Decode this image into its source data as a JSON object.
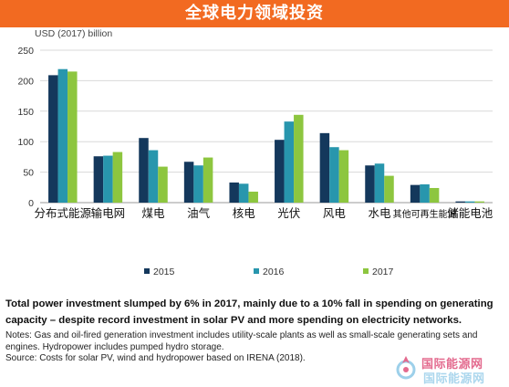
{
  "header": {
    "title": "全球电力领域投资"
  },
  "chart_data": {
    "type": "bar",
    "unit_label": "USD (2017) billion",
    "categories": [
      "分布式能源",
      "输电网",
      "煤电",
      "油气",
      "核电",
      "光伏",
      "风电",
      "水电",
      "其他可再生能源",
      "储能电池"
    ],
    "series": [
      {
        "name": "2015",
        "color": "#14385c",
        "values": [
          209,
          76,
          106,
          67,
          33,
          103,
          114,
          61,
          29,
          2
        ]
      },
      {
        "name": "2016",
        "color": "#2896ad",
        "values": [
          219,
          77,
          86,
          61,
          31,
          133,
          91,
          64,
          30,
          2
        ]
      },
      {
        "name": "2017",
        "color": "#8dc63f",
        "values": [
          215,
          83,
          59,
          74,
          18,
          144,
          86,
          44,
          24,
          2
        ]
      }
    ],
    "ylim": [
      0,
      250
    ],
    "yticks": [
      0,
      50,
      100,
      150,
      200,
      250
    ],
    "grid": true,
    "legend_position": "bottom"
  },
  "caption": {
    "main": "Total power investment slumped by 6% in 2017, mainly due to a 10% fall in spending on generating capacity – despite record investment in solar PV and more spending on electricity networks.",
    "notes": "Notes: Gas and oil-fired generation investment includes utility-scale plants as well as small-scale generating sets and engines. Hydropower includes pumped hydro storage.",
    "source": "Source: Costs for solar PV, wind and hydropower based on IRENA (2018)."
  },
  "watermark": {
    "line1": "国际能源网",
    "line2": "国际能源网"
  }
}
